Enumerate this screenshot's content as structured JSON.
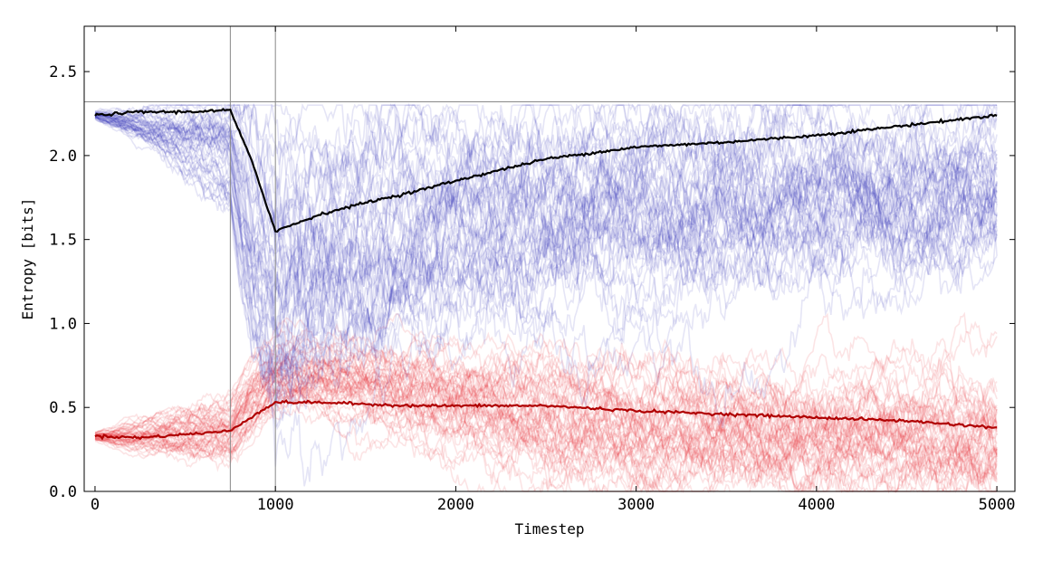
{
  "chart_data": {
    "type": "line",
    "title": "",
    "xlabel": "Timestep",
    "ylabel": "Entropy [bits]",
    "xlim": [
      -60,
      5100
    ],
    "ylim": [
      0.0,
      2.77
    ],
    "x_ticks": [
      0,
      1000,
      2000,
      3000,
      4000,
      5000
    ],
    "x_tick_labels": [
      "0",
      "1000",
      "2000",
      "3000",
      "4000",
      "5000"
    ],
    "y_ticks": [
      0.0,
      0.5,
      1.0,
      1.5,
      2.0,
      2.5
    ],
    "y_tick_labels": [
      "0.0",
      "0.5",
      "1.0",
      "1.5",
      "2.0",
      "2.5"
    ],
    "grid": false,
    "legend": "none",
    "reference_lines": {
      "vertical_x": [
        750,
        1000
      ],
      "horizontal_y": [
        2.32
      ]
    },
    "colors": {
      "blue_runs": "#2a2ab8",
      "red_runs": "#e8202a",
      "black_mean": "#000000",
      "red_mean": "#b00000",
      "reference": "#888888"
    },
    "x": [
      0,
      250,
      500,
      750,
      875,
      1000,
      1250,
      1500,
      1750,
      2000,
      2500,
      3000,
      3500,
      4000,
      4500,
      5000
    ],
    "series": [
      {
        "values": [
          2.24,
          2.26,
          2.26,
          2.27,
          1.95,
          1.55,
          1.65,
          1.72,
          1.78,
          1.85,
          1.98,
          2.05,
          2.08,
          2.12,
          2.18,
          2.24
        ]
      },
      {
        "values": [
          0.33,
          0.32,
          0.34,
          0.36,
          0.45,
          0.53,
          0.53,
          0.52,
          0.51,
          0.51,
          0.51,
          0.48,
          0.46,
          0.44,
          0.42,
          0.38
        ]
      }
    ],
    "band_series": [
      {
        "x": [
          0,
          250,
          500,
          750,
          875,
          1000,
          1250,
          1500,
          1750,
          2000,
          2500,
          3000,
          3500,
          4000,
          4500,
          5000
        ],
        "y_mean": [
          2.24,
          2.18,
          2.1,
          2.0,
          1.45,
          1.15,
          1.3,
          1.42,
          1.5,
          1.55,
          1.6,
          1.65,
          1.68,
          1.72,
          1.74,
          1.76
        ],
        "y_spread": [
          0.02,
          0.07,
          0.14,
          0.2,
          0.45,
          0.55,
          0.48,
          0.45,
          0.42,
          0.4,
          0.4,
          0.38,
          0.38,
          0.36,
          0.36,
          0.34
        ],
        "runs": 50
      },
      {
        "x": [
          0,
          250,
          500,
          750,
          875,
          1000,
          1250,
          1500,
          1750,
          2000,
          2500,
          3000,
          3500,
          4000,
          4500,
          5000
        ],
        "y_mean": [
          0.33,
          0.33,
          0.35,
          0.37,
          0.58,
          0.7,
          0.68,
          0.64,
          0.6,
          0.55,
          0.45,
          0.38,
          0.37,
          0.36,
          0.35,
          0.35
        ],
        "y_spread": [
          0.02,
          0.06,
          0.1,
          0.12,
          0.14,
          0.13,
          0.14,
          0.16,
          0.18,
          0.2,
          0.22,
          0.24,
          0.24,
          0.24,
          0.24,
          0.24
        ],
        "runs": 50
      }
    ]
  }
}
